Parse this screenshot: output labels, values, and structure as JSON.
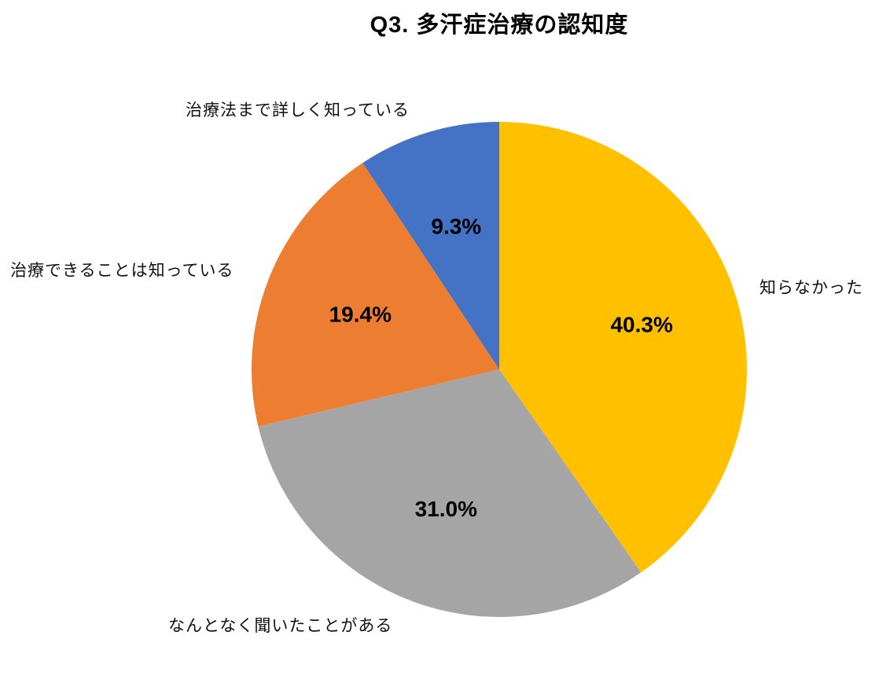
{
  "page": {
    "background": "#FFFFFF"
  },
  "chart_data": {
    "type": "pie",
    "title": "Q3. 多汗症治療の認知度",
    "direction": "clockwise",
    "start_angle_deg": 0,
    "category_labels_position": "outside",
    "value_labels_position": "inside",
    "value_label_color": "#000000",
    "legend": "none",
    "segments": [
      {
        "label": "知らなかった",
        "value": 40.3,
        "display_value": "40.3%",
        "color": "#FFC000"
      },
      {
        "label": "なんとなく聞いたことがある",
        "value": 31.0,
        "display_value": "31.0%",
        "color": "#A5A5A5"
      },
      {
        "label": "治療できることは知っている",
        "value": 19.4,
        "display_value": "19.4%",
        "color": "#ED7D31"
      },
      {
        "label": "治療法まで詳しく知っている",
        "value": 9.3,
        "display_value": "9.3%",
        "color": "#4472C4"
      }
    ]
  }
}
